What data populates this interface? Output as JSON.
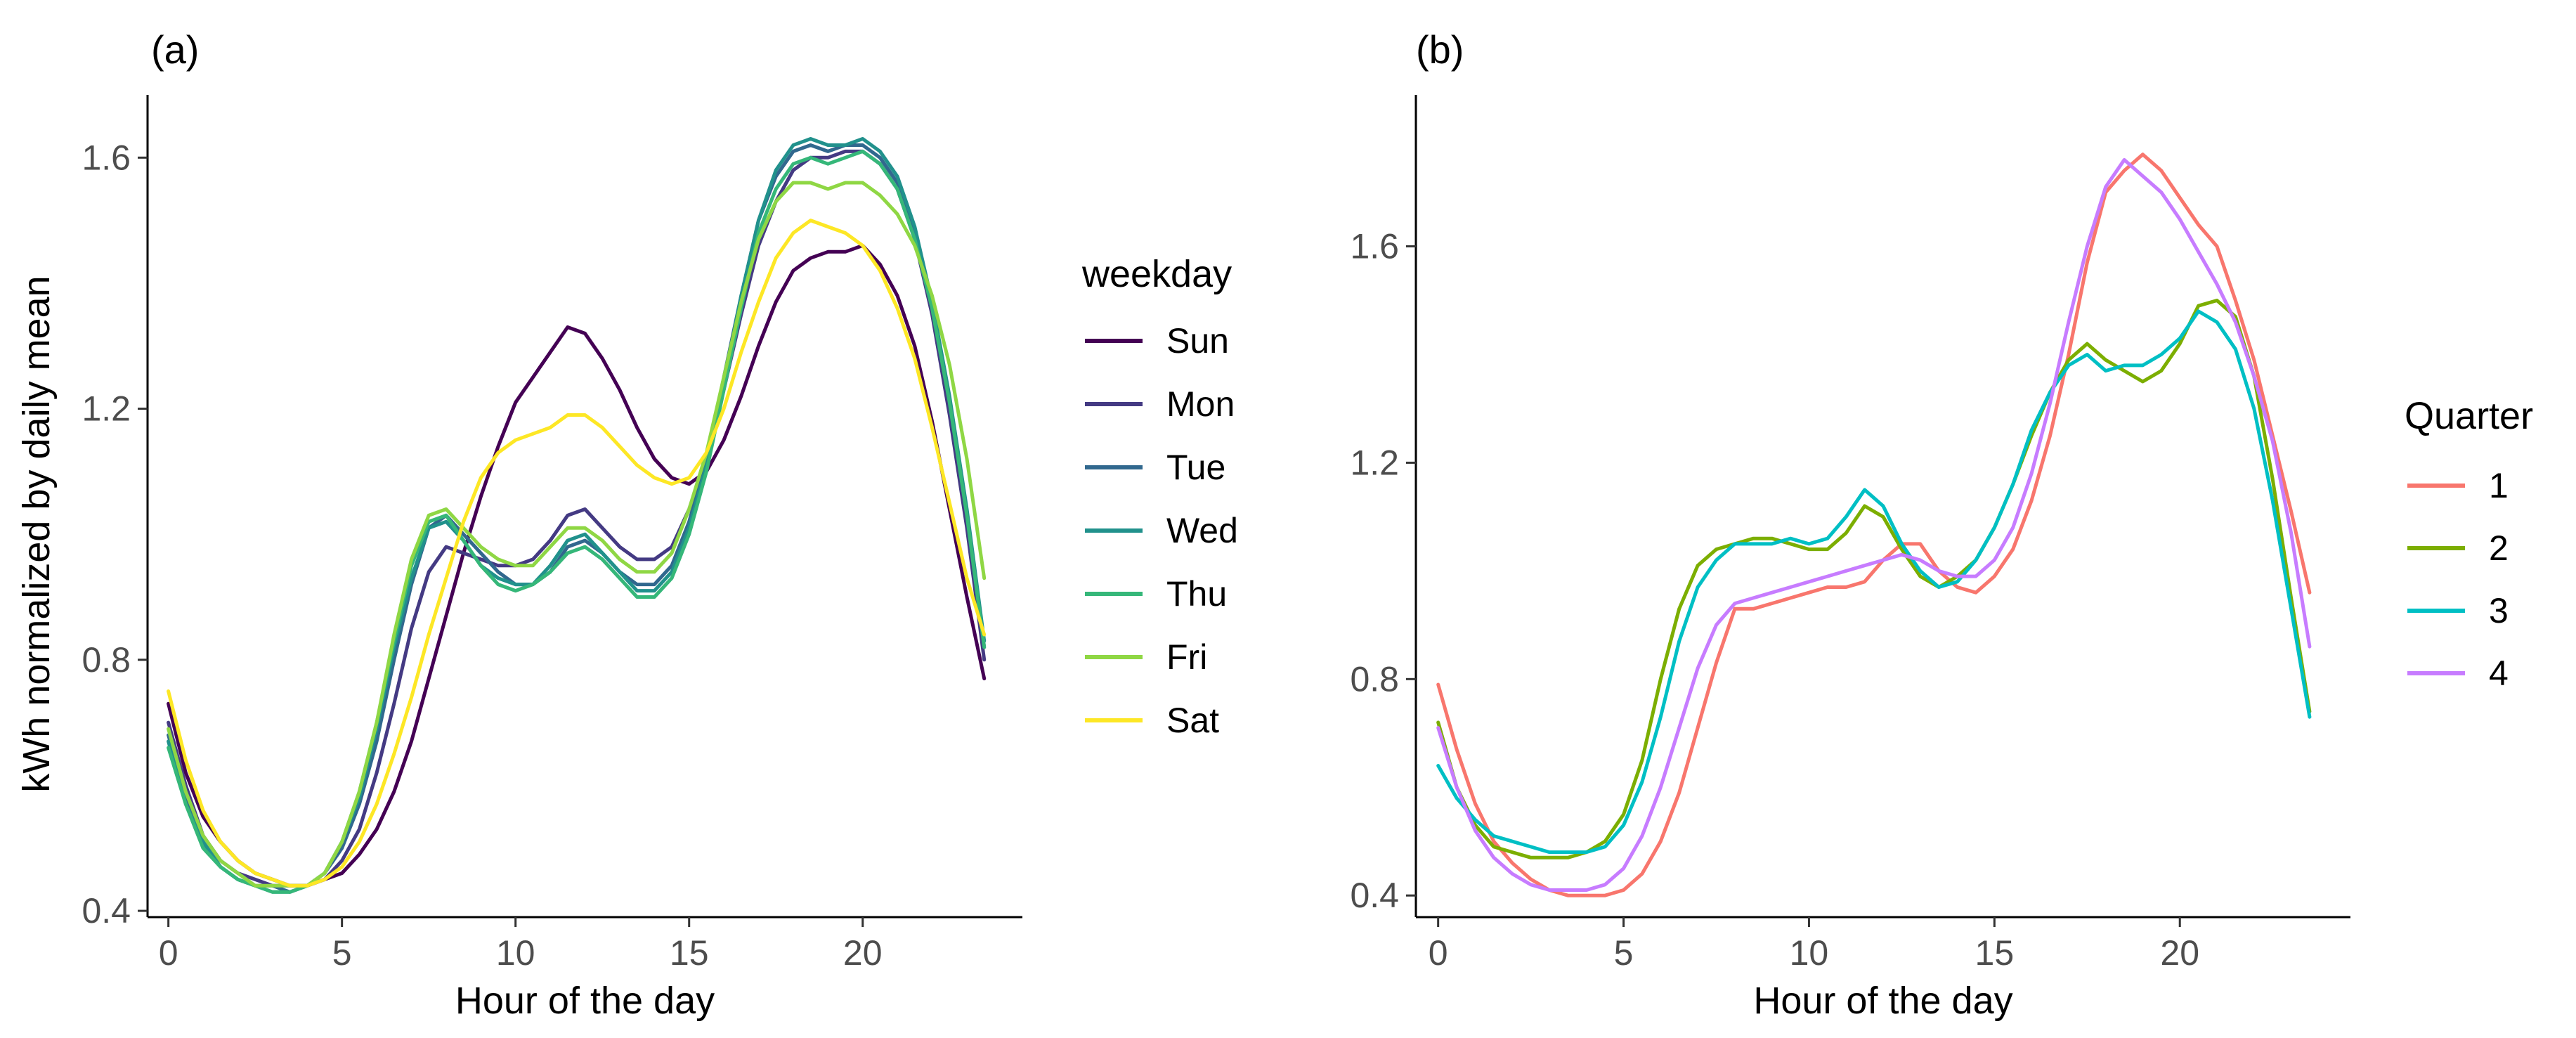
{
  "chart_data": [
    {
      "type": "line",
      "panel_label": "(a)",
      "xlabel": "Hour of the day",
      "ylabel": "kWh normalized by daily mean",
      "xlim": [
        -0.6,
        24.6
      ],
      "ylim": [
        0.39,
        1.7
      ],
      "xticks": [
        0,
        5,
        10,
        15,
        20
      ],
      "xtick_labels": [
        "0",
        "5",
        "10",
        "15",
        "20"
      ],
      "yticks": [
        0.4,
        0.8,
        1.2,
        1.6
      ],
      "ytick_labels": [
        "0.4",
        "0.8",
        "1.2",
        "1.6"
      ],
      "grid": false,
      "legend": {
        "title": "weekday",
        "placement": "right"
      },
      "x": [
        0,
        0.5,
        1,
        1.5,
        2,
        2.5,
        3,
        3.5,
        4,
        4.5,
        5,
        5.5,
        6,
        6.5,
        7,
        7.5,
        8,
        8.5,
        9,
        9.5,
        10,
        10.5,
        11,
        11.5,
        12,
        12.5,
        13,
        13.5,
        14,
        14.5,
        15,
        15.5,
        16,
        16.5,
        17,
        17.5,
        18,
        18.5,
        19,
        19.5,
        20,
        20.5,
        21,
        21.5,
        22,
        22.5,
        23,
        23.5
      ],
      "series": [
        {
          "name": "Sun",
          "color": "#440154",
          "values": [
            0.73,
            0.62,
            0.55,
            0.51,
            0.48,
            0.46,
            0.45,
            0.44,
            0.44,
            0.45,
            0.46,
            0.49,
            0.53,
            0.59,
            0.67,
            0.77,
            0.87,
            0.97,
            1.06,
            1.14,
            1.21,
            1.25,
            1.29,
            1.33,
            1.32,
            1.28,
            1.23,
            1.17,
            1.12,
            1.09,
            1.08,
            1.1,
            1.15,
            1.22,
            1.3,
            1.37,
            1.42,
            1.44,
            1.45,
            1.45,
            1.46,
            1.43,
            1.38,
            1.3,
            1.18,
            1.04,
            0.9,
            0.77
          ]
        },
        {
          "name": "Mon",
          "color": "#443a83",
          "values": [
            0.7,
            0.6,
            0.52,
            0.48,
            0.46,
            0.45,
            0.44,
            0.44,
            0.44,
            0.45,
            0.48,
            0.53,
            0.62,
            0.73,
            0.85,
            0.94,
            0.98,
            0.97,
            0.96,
            0.95,
            0.95,
            0.96,
            0.99,
            1.03,
            1.04,
            1.01,
            0.98,
            0.96,
            0.96,
            0.98,
            1.04,
            1.12,
            1.23,
            1.35,
            1.46,
            1.53,
            1.58,
            1.6,
            1.6,
            1.61,
            1.61,
            1.59,
            1.55,
            1.47,
            1.35,
            1.19,
            1.01,
            0.8
          ]
        },
        {
          "name": "Tue",
          "color": "#31688e",
          "values": [
            0.68,
            0.58,
            0.51,
            0.47,
            0.45,
            0.44,
            0.44,
            0.43,
            0.44,
            0.46,
            0.5,
            0.57,
            0.67,
            0.8,
            0.92,
            1.01,
            1.03,
            1.0,
            0.97,
            0.94,
            0.92,
            0.92,
            0.94,
            0.98,
            0.99,
            0.97,
            0.94,
            0.92,
            0.92,
            0.95,
            1.02,
            1.12,
            1.25,
            1.38,
            1.5,
            1.57,
            1.61,
            1.62,
            1.61,
            1.62,
            1.62,
            1.6,
            1.56,
            1.48,
            1.36,
            1.21,
            1.03,
            0.82
          ]
        },
        {
          "name": "Wed",
          "color": "#21918c",
          "values": [
            0.67,
            0.57,
            0.51,
            0.47,
            0.45,
            0.44,
            0.43,
            0.43,
            0.44,
            0.46,
            0.51,
            0.58,
            0.69,
            0.82,
            0.93,
            1.01,
            1.02,
            0.99,
            0.95,
            0.93,
            0.92,
            0.92,
            0.95,
            0.99,
            1.0,
            0.97,
            0.94,
            0.91,
            0.91,
            0.94,
            1.01,
            1.11,
            1.24,
            1.38,
            1.5,
            1.58,
            1.62,
            1.63,
            1.62,
            1.62,
            1.63,
            1.61,
            1.57,
            1.49,
            1.37,
            1.22,
            1.04,
            0.83
          ]
        },
        {
          "name": "Thu",
          "color": "#35b779",
          "values": [
            0.66,
            0.57,
            0.5,
            0.47,
            0.45,
            0.44,
            0.43,
            0.43,
            0.44,
            0.46,
            0.51,
            0.59,
            0.7,
            0.83,
            0.95,
            1.02,
            1.03,
            0.99,
            0.95,
            0.92,
            0.91,
            0.92,
            0.94,
            0.97,
            0.98,
            0.96,
            0.93,
            0.9,
            0.9,
            0.93,
            1.0,
            1.1,
            1.23,
            1.36,
            1.48,
            1.55,
            1.59,
            1.6,
            1.59,
            1.6,
            1.61,
            1.59,
            1.55,
            1.47,
            1.36,
            1.21,
            1.03,
            0.82
          ]
        },
        {
          "name": "Fri",
          "color": "#8fd744",
          "values": [
            0.69,
            0.59,
            0.52,
            0.48,
            0.46,
            0.44,
            0.44,
            0.44,
            0.44,
            0.46,
            0.51,
            0.59,
            0.7,
            0.84,
            0.96,
            1.03,
            1.04,
            1.01,
            0.98,
            0.96,
            0.95,
            0.95,
            0.98,
            1.01,
            1.01,
            0.99,
            0.96,
            0.94,
            0.94,
            0.97,
            1.04,
            1.13,
            1.25,
            1.37,
            1.47,
            1.53,
            1.56,
            1.56,
            1.55,
            1.56,
            1.56,
            1.54,
            1.51,
            1.46,
            1.38,
            1.27,
            1.12,
            0.93
          ]
        },
        {
          "name": "Sat",
          "color": "#fde725",
          "values": [
            0.75,
            0.64,
            0.56,
            0.51,
            0.48,
            0.46,
            0.45,
            0.44,
            0.44,
            0.45,
            0.47,
            0.51,
            0.57,
            0.65,
            0.74,
            0.84,
            0.93,
            1.02,
            1.09,
            1.13,
            1.15,
            1.16,
            1.17,
            1.19,
            1.19,
            1.17,
            1.14,
            1.11,
            1.09,
            1.08,
            1.09,
            1.13,
            1.2,
            1.29,
            1.37,
            1.44,
            1.48,
            1.5,
            1.49,
            1.48,
            1.46,
            1.42,
            1.36,
            1.28,
            1.17,
            1.05,
            0.93,
            0.84
          ]
        }
      ]
    },
    {
      "type": "line",
      "panel_label": "(b)",
      "xlabel": "Hour of the day",
      "ylabel": "",
      "xlim": [
        -0.6,
        24.6
      ],
      "ylim": [
        0.36,
        1.88
      ],
      "xticks": [
        0,
        5,
        10,
        15,
        20
      ],
      "xtick_labels": [
        "0",
        "5",
        "10",
        "15",
        "20"
      ],
      "yticks": [
        0.4,
        0.8,
        1.2,
        1.6
      ],
      "ytick_labels": [
        "0.4",
        "0.8",
        "1.2",
        "1.6"
      ],
      "grid": false,
      "legend": {
        "title": "Quarter",
        "placement": "right"
      },
      "x": [
        0,
        0.5,
        1,
        1.5,
        2,
        2.5,
        3,
        3.5,
        4,
        4.5,
        5,
        5.5,
        6,
        6.5,
        7,
        7.5,
        8,
        8.5,
        9,
        9.5,
        10,
        10.5,
        11,
        11.5,
        12,
        12.5,
        13,
        13.5,
        14,
        14.5,
        15,
        15.5,
        16,
        16.5,
        17,
        17.5,
        18,
        18.5,
        19,
        19.5,
        20,
        20.5,
        21,
        21.5,
        22,
        22.5,
        23,
        23.5
      ],
      "series": [
        {
          "name": "1",
          "color": "#f8766d",
          "values": [
            0.79,
            0.67,
            0.57,
            0.5,
            0.46,
            0.43,
            0.41,
            0.4,
            0.4,
            0.4,
            0.41,
            0.44,
            0.5,
            0.59,
            0.71,
            0.83,
            0.93,
            0.93,
            0.94,
            0.95,
            0.96,
            0.97,
            0.97,
            0.98,
            1.02,
            1.05,
            1.05,
            1.0,
            0.97,
            0.96,
            0.99,
            1.04,
            1.13,
            1.25,
            1.4,
            1.57,
            1.7,
            1.74,
            1.77,
            1.74,
            1.69,
            1.64,
            1.6,
            1.5,
            1.39,
            1.25,
            1.11,
            0.96
          ]
        },
        {
          "name": "2",
          "color": "#7cae00",
          "values": [
            0.72,
            0.6,
            0.53,
            0.49,
            0.48,
            0.47,
            0.47,
            0.47,
            0.48,
            0.5,
            0.55,
            0.65,
            0.8,
            0.93,
            1.01,
            1.04,
            1.05,
            1.06,
            1.06,
            1.05,
            1.04,
            1.04,
            1.07,
            1.12,
            1.1,
            1.04,
            0.99,
            0.97,
            0.99,
            1.02,
            1.08,
            1.16,
            1.25,
            1.33,
            1.39,
            1.42,
            1.39,
            1.37,
            1.35,
            1.37,
            1.42,
            1.49,
            1.5,
            1.47,
            1.36,
            1.17,
            0.95,
            0.74
          ]
        },
        {
          "name": "3",
          "color": "#00bfc4",
          "values": [
            0.64,
            0.58,
            0.54,
            0.51,
            0.5,
            0.49,
            0.48,
            0.48,
            0.48,
            0.49,
            0.53,
            0.61,
            0.73,
            0.87,
            0.97,
            1.02,
            1.05,
            1.05,
            1.05,
            1.06,
            1.05,
            1.06,
            1.1,
            1.15,
            1.12,
            1.05,
            1.0,
            0.97,
            0.98,
            1.02,
            1.08,
            1.16,
            1.26,
            1.33,
            1.38,
            1.4,
            1.37,
            1.38,
            1.38,
            1.4,
            1.43,
            1.48,
            1.46,
            1.41,
            1.3,
            1.13,
            0.93,
            0.73
          ]
        },
        {
          "name": "4",
          "color": "#c77cff",
          "values": [
            0.71,
            0.6,
            0.52,
            0.47,
            0.44,
            0.42,
            0.41,
            0.41,
            0.41,
            0.42,
            0.45,
            0.51,
            0.6,
            0.71,
            0.82,
            0.9,
            0.94,
            0.95,
            0.96,
            0.97,
            0.98,
            0.99,
            1.0,
            1.01,
            1.02,
            1.03,
            1.02,
            1.0,
            0.99,
            0.99,
            1.02,
            1.08,
            1.18,
            1.31,
            1.46,
            1.6,
            1.71,
            1.76,
            1.73,
            1.7,
            1.65,
            1.59,
            1.53,
            1.46,
            1.36,
            1.24,
            1.07,
            0.86
          ]
        }
      ]
    }
  ]
}
